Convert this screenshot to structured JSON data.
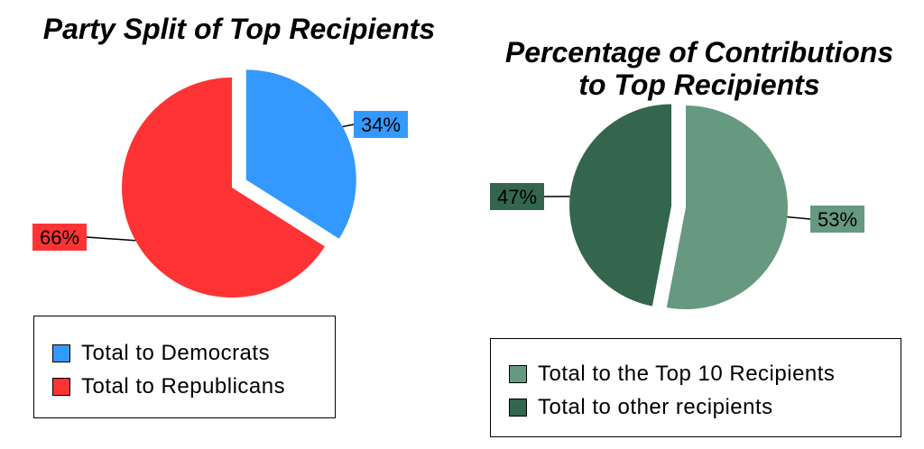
{
  "chart_data": [
    {
      "type": "pie",
      "title": "Party Split of Top Recipients",
      "slices": [
        {
          "name": "Total to Democrats",
          "value": 34,
          "label": "34%",
          "color": "#3399ff"
        },
        {
          "name": "Total to Republicans",
          "value": 66,
          "label": "66%",
          "color": "#ff3333"
        }
      ],
      "exploded_slice": "Total to Democrats",
      "legend_placement": "bottom"
    },
    {
      "type": "pie",
      "title": "Percentage of Contributions to Top Recipients",
      "slices": [
        {
          "name": "Total to the Top 10 Recipients",
          "value": 53,
          "label": "53%",
          "color": "#669980"
        },
        {
          "name": "Total to other recipients",
          "value": 47,
          "label": "47%",
          "color": "#33664d"
        }
      ],
      "exploded_slice": "Total to other recipients",
      "legend_placement": "bottom"
    }
  ]
}
